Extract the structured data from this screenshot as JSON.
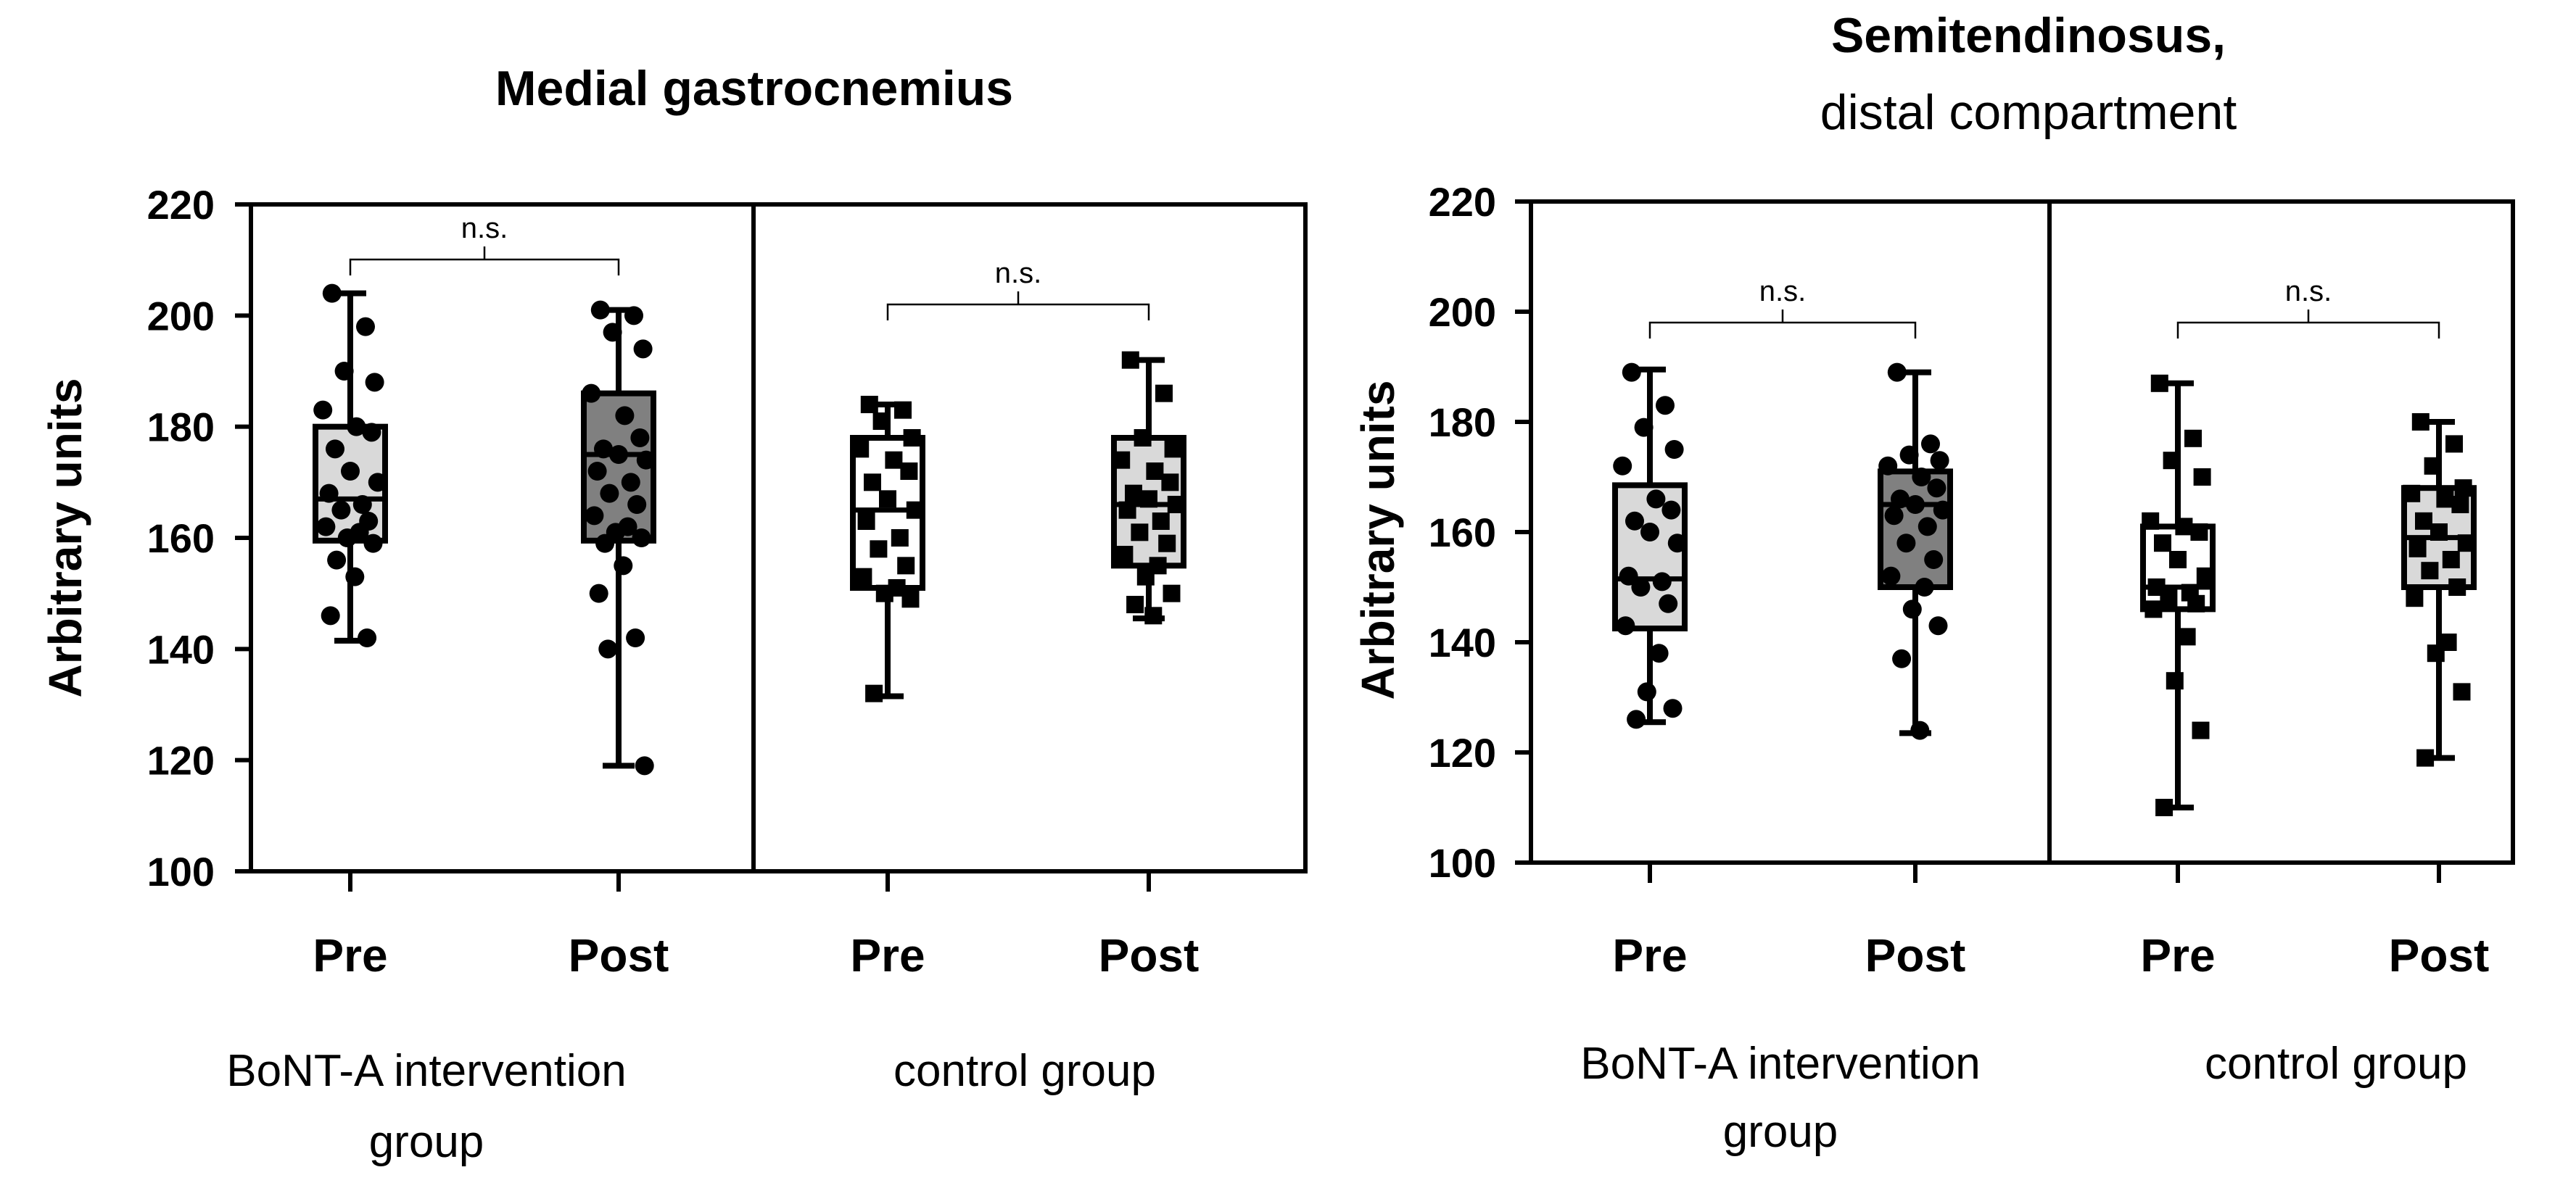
{
  "chart_data": [
    {
      "type": "box",
      "title": "Medial gastrocnemius",
      "subtitle": "",
      "ylabel": "Arbitrary units",
      "ylim": [
        100,
        220
      ],
      "yticks": [
        100,
        120,
        140,
        160,
        180,
        200,
        220
      ],
      "groups": [
        {
          "label": "BoNT-A intervention group",
          "significance": "n.s.",
          "boxes": [
            {
              "category": "Pre",
              "fill": "#d9d9d9",
              "marker": "circle",
              "stats": {
                "min": 141.5,
                "q1": 159.5,
                "median": 167,
                "q3": 180,
                "max": 204
              },
              "points": [
                204,
                198,
                190,
                188,
                183,
                180,
                179,
                176,
                172,
                170,
                168,
                166,
                165,
                163,
                162,
                161,
                160,
                159,
                156,
                153,
                146,
                142
              ]
            },
            {
              "category": "Post",
              "fill": "#808080",
              "marker": "circle",
              "stats": {
                "min": 119,
                "q1": 159.5,
                "median": 175,
                "q3": 186,
                "max": 201
              },
              "points": [
                201,
                200,
                197,
                194,
                186,
                182,
                178,
                176,
                175,
                174,
                172,
                170,
                168,
                166,
                164,
                162,
                161,
                160,
                159,
                155,
                150,
                142,
                140,
                119
              ]
            }
          ]
        },
        {
          "label": "control group",
          "significance": "n.s.",
          "boxes": [
            {
              "category": "Pre",
              "fill": "#ffffff",
              "marker": "square",
              "stats": {
                "min": 131.5,
                "q1": 151,
                "median": 165,
                "q3": 178,
                "max": 184
              },
              "points": [
                184,
                183,
                181,
                178,
                176,
                174,
                172,
                170,
                167,
                165,
                163,
                160,
                158,
                155,
                153,
                151,
                150,
                149,
                132
              ]
            },
            {
              "category": "Post",
              "fill": "#d9d9d9",
              "marker": "square",
              "stats": {
                "min": 145.5,
                "q1": 155,
                "median": 166,
                "q3": 178,
                "max": 192
              },
              "points": [
                192,
                186,
                178,
                176,
                174,
                172,
                170,
                168,
                167,
                166,
                165,
                163,
                161,
                159,
                157,
                155,
                153,
                150,
                148,
                146
              ]
            }
          ]
        }
      ]
    },
    {
      "type": "box",
      "title": "Semitendinosus,",
      "subtitle": "distal compartment",
      "ylabel": "Arbitrary units",
      "ylim": [
        100,
        220
      ],
      "yticks": [
        100,
        120,
        140,
        160,
        180,
        200,
        220
      ],
      "groups": [
        {
          "label": "BoNT-A intervention group",
          "significance": "n.s.",
          "boxes": [
            {
              "category": "Pre",
              "fill": "#d9d9d9",
              "marker": "circle",
              "stats": {
                "min": 125.5,
                "q1": 142.5,
                "median": 151.5,
                "q3": 168.5,
                "max": 189.5
              },
              "points": [
                189,
                183,
                179,
                175,
                172,
                166,
                164,
                162,
                160,
                158,
                152,
                151,
                150,
                147,
                143,
                138,
                131,
                128,
                126
              ]
            },
            {
              "category": "Post",
              "fill": "#808080",
              "marker": "circle",
              "stats": {
                "min": 123.5,
                "q1": 150,
                "median": 165,
                "q3": 171,
                "max": 189
              },
              "points": [
                189,
                176,
                174,
                173,
                172,
                170,
                168,
                166,
                165,
                164,
                163,
                161,
                158,
                155,
                152,
                150,
                146,
                143,
                137,
                124
              ]
            }
          ]
        },
        {
          "label": "control group",
          "significance": "n.s.",
          "boxes": [
            {
              "category": "Pre",
              "fill": "#ffffff",
              "marker": "square",
              "stats": {
                "min": 110,
                "q1": 146,
                "median": 150,
                "q3": 161,
                "max": 187
              },
              "points": [
                187,
                177,
                173,
                170,
                162,
                161,
                160,
                158,
                155,
                152,
                150,
                149,
                148,
                147,
                146,
                141,
                133,
                124,
                110
              ]
            },
            {
              "category": "Post",
              "fill": "#d9d9d9",
              "marker": "square",
              "stats": {
                "min": 119,
                "q1": 150,
                "median": 159,
                "q3": 168,
                "max": 180
              },
              "points": [
                180,
                176,
                172,
                168,
                167,
                166,
                165,
                162,
                160,
                158,
                157,
                155,
                153,
                150,
                148,
                140,
                138,
                131,
                119
              ]
            }
          ]
        }
      ]
    }
  ]
}
